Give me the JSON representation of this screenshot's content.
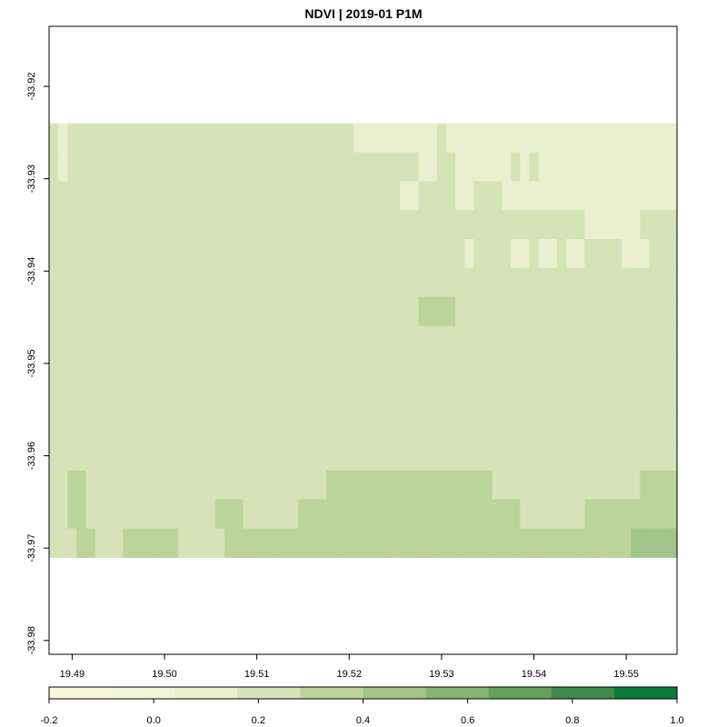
{
  "chart_data": {
    "type": "heatmap",
    "title": "NDVI | 2019-01 P1M",
    "xlabel": "",
    "ylabel": "",
    "xlim": [
      19.4875,
      19.5555
    ],
    "ylim": [
      -33.9815,
      -33.9135
    ],
    "data_extent": {
      "x": [
        19.4875,
        19.5555
      ],
      "y": [
        -33.971,
        -33.924
      ]
    },
    "x_ticks": [
      "19.49",
      "19.50",
      "19.51",
      "19.52",
      "19.53",
      "19.54",
      "19.55"
    ],
    "y_ticks": [
      "-33.92",
      "-33.93",
      "-33.94",
      "-33.95",
      "-33.96",
      "-33.97",
      "-33.98"
    ],
    "colorbar": {
      "ticks": [
        "-0.2",
        "0.0",
        "0.2",
        "0.4",
        "0.6",
        "0.8",
        "1.0"
      ],
      "range": [
        -0.2,
        1.0
      ],
      "colors": [
        "#f7f7dc",
        "#f3f5d9",
        "#e9efcf",
        "#d5e3b6",
        "#bcd49c",
        "#a3c48a",
        "#86b474",
        "#66a05c",
        "#3f8a48",
        "#087a3a"
      ]
    },
    "grid": false,
    "legend": "colorbar-bottom",
    "cells_note_values": [
      [
        0.22,
        0.12,
        0.22,
        0.22,
        0.22,
        0.22,
        0.22,
        0.22,
        0.23,
        0.22,
        0.22,
        0.22,
        0.22,
        0.22,
        0.22,
        0.22,
        0.22,
        0.22,
        0.22,
        0.21,
        0.2,
        0.2,
        0.21,
        0.2,
        0.2,
        0.22,
        0.22,
        0.22,
        0.22,
        0.22,
        0.22,
        0.22,
        0.2,
        0.15,
        0.15,
        0.13,
        0.13,
        0.13,
        0.13,
        0.13,
        0.15,
        0.15,
        0.2,
        0.15,
        0.15,
        0.13,
        0.13,
        0.13,
        0.13,
        0.13,
        0.13,
        0.13,
        0.13,
        0.13,
        0.13,
        0.13,
        0.13,
        0.13,
        0.13,
        0.13,
        0.13,
        0.13,
        0.13,
        0.13,
        0.13,
        0.13,
        0.13,
        0.13
      ],
      [
        0.2,
        0.15,
        0.22,
        0.22,
        0.22,
        0.22,
        0.22,
        0.22,
        0.22,
        0.22,
        0.22,
        0.22,
        0.22,
        0.22,
        0.22,
        0.22,
        0.22,
        0.24,
        0.24,
        0.22,
        0.22,
        0.22,
        0.22,
        0.22,
        0.22,
        0.22,
        0.22,
        0.22,
        0.22,
        0.22,
        0.22,
        0.22,
        0.22,
        0.2,
        0.2,
        0.22,
        0.22,
        0.2,
        0.2,
        0.18,
        0.15,
        0.15,
        0.2,
        0.2,
        0.13,
        0.13,
        0.15,
        0.15,
        0.15,
        0.15,
        0.18,
        0.15,
        0.18,
        0.13,
        0.13,
        0.13,
        0.13,
        0.13,
        0.13,
        0.13,
        0.13,
        0.13,
        0.13,
        0.13,
        0.13,
        0.13,
        0.13,
        0.13
      ],
      [
        0.22,
        0.22,
        0.22,
        0.22,
        0.22,
        0.22,
        0.22,
        0.22,
        0.22,
        0.22,
        0.22,
        0.22,
        0.22,
        0.22,
        0.22,
        0.22,
        0.22,
        0.22,
        0.22,
        0.22,
        0.22,
        0.22,
        0.22,
        0.22,
        0.22,
        0.22,
        0.22,
        0.22,
        0.22,
        0.22,
        0.22,
        0.22,
        0.22,
        0.22,
        0.22,
        0.22,
        0.22,
        0.2,
        0.15,
        0.15,
        0.2,
        0.2,
        0.2,
        0.2,
        0.15,
        0.15,
        0.2,
        0.2,
        0.2,
        0.15,
        0.15,
        0.15,
        0.13,
        0.13,
        0.15,
        0.15,
        0.15,
        0.13,
        0.13,
        0.13,
        0.13,
        0.13,
        0.13,
        0.13,
        0.13,
        0.13,
        0.13,
        0.13
      ],
      [
        0.22,
        0.22,
        0.22,
        0.22,
        0.22,
        0.22,
        0.22,
        0.22,
        0.22,
        0.22,
        0.22,
        0.22,
        0.22,
        0.22,
        0.22,
        0.22,
        0.22,
        0.22,
        0.22,
        0.22,
        0.22,
        0.22,
        0.22,
        0.22,
        0.24,
        0.22,
        0.22,
        0.22,
        0.22,
        0.22,
        0.22,
        0.22,
        0.22,
        0.22,
        0.22,
        0.22,
        0.22,
        0.22,
        0.22,
        0.22,
        0.22,
        0.22,
        0.22,
        0.2,
        0.2,
        0.2,
        0.2,
        0.2,
        0.22,
        0.22,
        0.22,
        0.22,
        0.22,
        0.22,
        0.2,
        0.22,
        0.22,
        0.2,
        0.15,
        0.15,
        0.15,
        0.15,
        0.15,
        0.13,
        0.2,
        0.2,
        0.22,
        0.22
      ],
      [
        0.22,
        0.22,
        0.22,
        0.22,
        0.22,
        0.22,
        0.26,
        0.26,
        0.22,
        0.22,
        0.22,
        0.22,
        0.22,
        0.22,
        0.22,
        0.22,
        0.22,
        0.22,
        0.22,
        0.22,
        0.22,
        0.22,
        0.24,
        0.22,
        0.26,
        0.24,
        0.22,
        0.22,
        0.22,
        0.22,
        0.22,
        0.22,
        0.22,
        0.22,
        0.22,
        0.22,
        0.22,
        0.22,
        0.2,
        0.22,
        0.22,
        0.2,
        0.2,
        0.2,
        0.18,
        0.15,
        0.2,
        0.2,
        0.2,
        0.2,
        0.15,
        0.15,
        0.18,
        0.15,
        0.15,
        0.2,
        0.15,
        0.15,
        0.2,
        0.2,
        0.2,
        0.2,
        0.15,
        0.13,
        0.15,
        0.2,
        0.22,
        0.22
      ],
      [
        0.24,
        0.24,
        0.24,
        0.24,
        0.24,
        0.24,
        0.24,
        0.24,
        0.22,
        0.22,
        0.22,
        0.22,
        0.22,
        0.24,
        0.24,
        0.24,
        0.24,
        0.24,
        0.24,
        0.24,
        0.24,
        0.24,
        0.24,
        0.24,
        0.24,
        0.24,
        0.24,
        0.24,
        0.26,
        0.24,
        0.24,
        0.24,
        0.24,
        0.24,
        0.24,
        0.22,
        0.22,
        0.22,
        0.22,
        0.22,
        0.22,
        0.22,
        0.22,
        0.24,
        0.26,
        0.26,
        0.24,
        0.24,
        0.22,
        0.22,
        0.22,
        0.22,
        0.22,
        0.22,
        0.22,
        0.22,
        0.22,
        0.22,
        0.22,
        0.22,
        0.22,
        0.22,
        0.22,
        0.22,
        0.22,
        0.22,
        0.22,
        0.22
      ],
      [
        0.24,
        0.24,
        0.26,
        0.26,
        0.24,
        0.24,
        0.24,
        0.24,
        0.24,
        0.24,
        0.24,
        0.24,
        0.24,
        0.24,
        0.24,
        0.24,
        0.24,
        0.24,
        0.24,
        0.24,
        0.26,
        0.26,
        0.26,
        0.24,
        0.24,
        0.26,
        0.24,
        0.24,
        0.26,
        0.24,
        0.24,
        0.26,
        0.26,
        0.24,
        0.24,
        0.24,
        0.24,
        0.24,
        0.24,
        0.26,
        0.3,
        0.3,
        0.3,
        0.3,
        0.24,
        0.24,
        0.24,
        0.24,
        0.22,
        0.22,
        0.22,
        0.22,
        0.22,
        0.22,
        0.22,
        0.22,
        0.22,
        0.24,
        0.24,
        0.24,
        0.24,
        0.24,
        0.24,
        0.22,
        0.22,
        0.22,
        0.22,
        0.22
      ],
      [
        0.24,
        0.24,
        0.24,
        0.24,
        0.24,
        0.24,
        0.24,
        0.24,
        0.24,
        0.24,
        0.24,
        0.24,
        0.24,
        0.24,
        0.24,
        0.24,
        0.24,
        0.24,
        0.24,
        0.24,
        0.24,
        0.24,
        0.24,
        0.24,
        0.24,
        0.24,
        0.24,
        0.24,
        0.24,
        0.24,
        0.24,
        0.24,
        0.24,
        0.24,
        0.24,
        0.24,
        0.24,
        0.24,
        0.24,
        0.24,
        0.24,
        0.24,
        0.24,
        0.24,
        0.24,
        0.24,
        0.24,
        0.24,
        0.24,
        0.22,
        0.22,
        0.22,
        0.22,
        0.22,
        0.22,
        0.22,
        0.22,
        0.22,
        0.22,
        0.22,
        0.22,
        0.22,
        0.2,
        0.2,
        0.2,
        0.2,
        0.2,
        0.22
      ],
      [
        0.22,
        0.22,
        0.22,
        0.22,
        0.22,
        0.22,
        0.24,
        0.24,
        0.24,
        0.24,
        0.24,
        0.24,
        0.24,
        0.24,
        0.24,
        0.24,
        0.24,
        0.24,
        0.24,
        0.24,
        0.24,
        0.24,
        0.24,
        0.24,
        0.24,
        0.24,
        0.24,
        0.24,
        0.24,
        0.22,
        0.22,
        0.22,
        0.24,
        0.24,
        0.24,
        0.24,
        0.24,
        0.24,
        0.24,
        0.24,
        0.22,
        0.22,
        0.22,
        0.22,
        0.22,
        0.24,
        0.24,
        0.24,
        0.22,
        0.22,
        0.22,
        0.22,
        0.22,
        0.22,
        0.22,
        0.22,
        0.22,
        0.22,
        0.22,
        0.22,
        0.22,
        0.22,
        0.22,
        0.22,
        0.22,
        0.22,
        0.24,
        0.24
      ],
      [
        0.24,
        0.24,
        0.22,
        0.22,
        0.22,
        0.22,
        0.22,
        0.24,
        0.24,
        0.24,
        0.24,
        0.24,
        0.24,
        0.24,
        0.24,
        0.24,
        0.24,
        0.24,
        0.24,
        0.24,
        0.24,
        0.24,
        0.24,
        0.24,
        0.24,
        0.24,
        0.24,
        0.22,
        0.22,
        0.22,
        0.22,
        0.22,
        0.22,
        0.22,
        0.22,
        0.22,
        0.22,
        0.22,
        0.22,
        0.22,
        0.22,
        0.22,
        0.22,
        0.22,
        0.24,
        0.24,
        0.24,
        0.24,
        0.24,
        0.24,
        0.24,
        0.24,
        0.24,
        0.24,
        0.24,
        0.24,
        0.24,
        0.24,
        0.24,
        0.24,
        0.24,
        0.24,
        0.24,
        0.26,
        0.26,
        0.26,
        0.24,
        0.24
      ],
      [
        0.24,
        0.24,
        0.24,
        0.24,
        0.24,
        0.24,
        0.24,
        0.24,
        0.26,
        0.26,
        0.26,
        0.26,
        0.26,
        0.26,
        0.26,
        0.26,
        0.26,
        0.26,
        0.26,
        0.26,
        0.26,
        0.26,
        0.26,
        0.26,
        0.26,
        0.26,
        0.24,
        0.22,
        0.22,
        0.22,
        0.22,
        0.22,
        0.22,
        0.22,
        0.22,
        0.22,
        0.22,
        0.22,
        0.22,
        0.22,
        0.22,
        0.22,
        0.22,
        0.22,
        0.22,
        0.22,
        0.22,
        0.24,
        0.24,
        0.24,
        0.24,
        0.24,
        0.24,
        0.24,
        0.26,
        0.26,
        0.26,
        0.26,
        0.26,
        0.26,
        0.26,
        0.26,
        0.26,
        0.26,
        0.26,
        0.26,
        0.26,
        0.24
      ],
      [
        0.24,
        0.24,
        0.26,
        0.26,
        0.24,
        0.24,
        0.24,
        0.24,
        0.24,
        0.24,
        0.24,
        0.26,
        0.26,
        0.26,
        0.26,
        0.26,
        0.26,
        0.26,
        0.26,
        0.26,
        0.26,
        0.26,
        0.26,
        0.26,
        0.26,
        0.26,
        0.26,
        0.26,
        0.22,
        0.22,
        0.22,
        0.22,
        0.22,
        0.22,
        0.22,
        0.22,
        0.22,
        0.22,
        0.22,
        0.22,
        0.22,
        0.22,
        0.22,
        0.22,
        0.22,
        0.22,
        0.24,
        0.24,
        0.24,
        0.24,
        0.24,
        0.24,
        0.24,
        0.24,
        0.26,
        0.26,
        0.26,
        0.26,
        0.26,
        0.26,
        0.26,
        0.26,
        0.26,
        0.26,
        0.26,
        0.26,
        0.26,
        0.26
      ],
      [
        0.26,
        0.26,
        0.3,
        0.3,
        0.26,
        0.26,
        0.26,
        0.26,
        0.26,
        0.26,
        0.26,
        0.26,
        0.26,
        0.26,
        0.26,
        0.26,
        0.26,
        0.26,
        0.26,
        0.26,
        0.26,
        0.26,
        0.26,
        0.26,
        0.26,
        0.26,
        0.26,
        0.26,
        0.26,
        0.26,
        0.3,
        0.3,
        0.3,
        0.3,
        0.3,
        0.3,
        0.3,
        0.3,
        0.3,
        0.3,
        0.3,
        0.3,
        0.3,
        0.3,
        0.3,
        0.3,
        0.3,
        0.3,
        0.26,
        0.26,
        0.26,
        0.26,
        0.26,
        0.26,
        0.26,
        0.26,
        0.26,
        0.26,
        0.26,
        0.26,
        0.26,
        0.26,
        0.26,
        0.26,
        0.3,
        0.3,
        0.3,
        0.3
      ],
      [
        0.26,
        0.26,
        0.3,
        0.3,
        0.26,
        0.26,
        0.26,
        0.26,
        0.26,
        0.26,
        0.26,
        0.26,
        0.26,
        0.26,
        0.26,
        0.26,
        0.26,
        0.26,
        0.3,
        0.3,
        0.3,
        0.26,
        0.26,
        0.26,
        0.26,
        0.26,
        0.26,
        0.3,
        0.3,
        0.3,
        0.3,
        0.35,
        0.35,
        0.35,
        0.35,
        0.3,
        0.3,
        0.3,
        0.3,
        0.3,
        0.3,
        0.35,
        0.35,
        0.35,
        0.35,
        0.35,
        0.35,
        0.3,
        0.3,
        0.3,
        0.3,
        0.26,
        0.26,
        0.26,
        0.26,
        0.26,
        0.26,
        0.26,
        0.3,
        0.3,
        0.3,
        0.3,
        0.3,
        0.3,
        0.3,
        0.35,
        0.35,
        0.35
      ],
      [
        0.26,
        0.26,
        0.26,
        0.3,
        0.3,
        0.26,
        0.26,
        0.26,
        0.3,
        0.3,
        0.3,
        0.3,
        0.3,
        0.3,
        0.26,
        0.26,
        0.26,
        0.26,
        0.26,
        0.3,
        0.3,
        0.3,
        0.3,
        0.3,
        0.3,
        0.3,
        0.3,
        0.3,
        0.3,
        0.35,
        0.35,
        0.35,
        0.35,
        0.35,
        0.35,
        0.35,
        0.35,
        0.35,
        0.35,
        0.35,
        0.35,
        0.35,
        0.35,
        0.35,
        0.35,
        0.35,
        0.35,
        0.35,
        0.35,
        0.35,
        0.3,
        0.3,
        0.3,
        0.3,
        0.3,
        0.3,
        0.3,
        0.35,
        0.35,
        0.35,
        0.35,
        0.35,
        0.35,
        0.4,
        0.4,
        0.4,
        0.4,
        0.4
      ]
    ]
  }
}
